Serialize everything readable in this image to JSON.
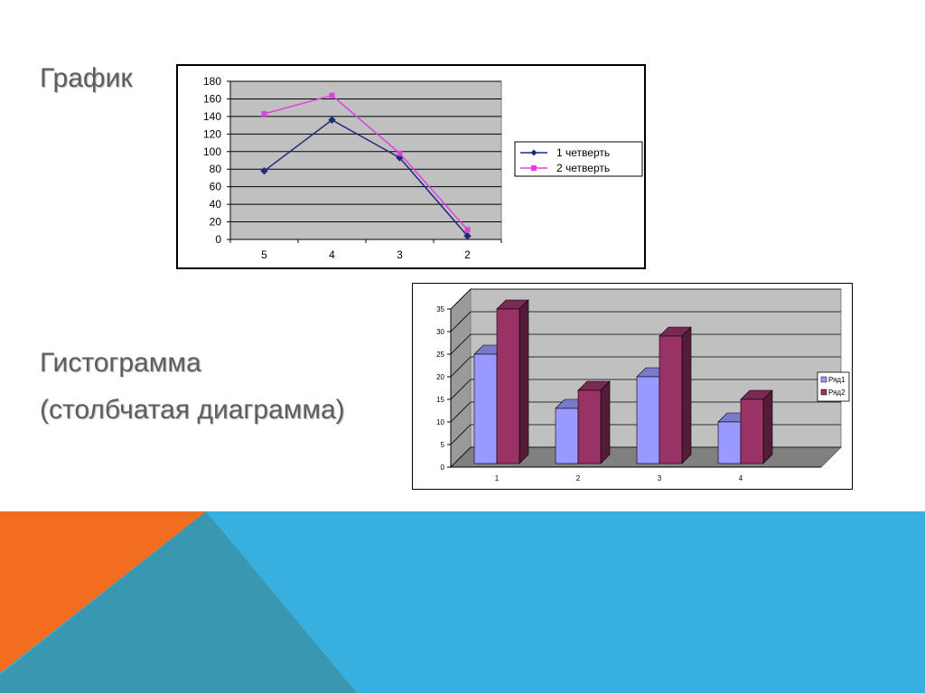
{
  "slide": {
    "heading_line": "График",
    "heading_hist": "Гистограмма",
    "heading_hist_sub": "(столбчатая диаграмма)"
  },
  "colors": {
    "plot_bg": "#c0c0c0",
    "series1_line": "#1f2a7a",
    "series2_line": "#e040e0",
    "bar1": "#9999ff",
    "bar2": "#993366",
    "floor": "#808080",
    "band_blue": "#38b0df",
    "band_orange": "#f26d1f",
    "band_teal": "#3a97b2"
  },
  "chart_data": [
    {
      "type": "line",
      "categories": [
        "5",
        "4",
        "3",
        "2"
      ],
      "series": [
        {
          "name": "1 четверть",
          "values": [
            78,
            136,
            93,
            4
          ],
          "marker": "diamond"
        },
        {
          "name": "2 четверть",
          "values": [
            143,
            164,
            98,
            11
          ],
          "marker": "square"
        }
      ],
      "ylim": [
        0,
        180
      ],
      "yticks": [
        0,
        20,
        40,
        60,
        80,
        100,
        120,
        140,
        160,
        180
      ],
      "grid": true,
      "legend": "right"
    },
    {
      "type": "bar",
      "style": "3d-clustered",
      "categories": [
        "1",
        "2",
        "3",
        "4"
      ],
      "series": [
        {
          "name": "Ряд1",
          "values": [
            25,
            13,
            20,
            10
          ]
        },
        {
          "name": "Ряд2",
          "values": [
            35,
            17,
            29,
            15
          ]
        }
      ],
      "ylim": [
        0,
        35
      ],
      "yticks": [
        0,
        5,
        10,
        15,
        20,
        25,
        30,
        35
      ],
      "grid": true,
      "legend": "right"
    }
  ]
}
